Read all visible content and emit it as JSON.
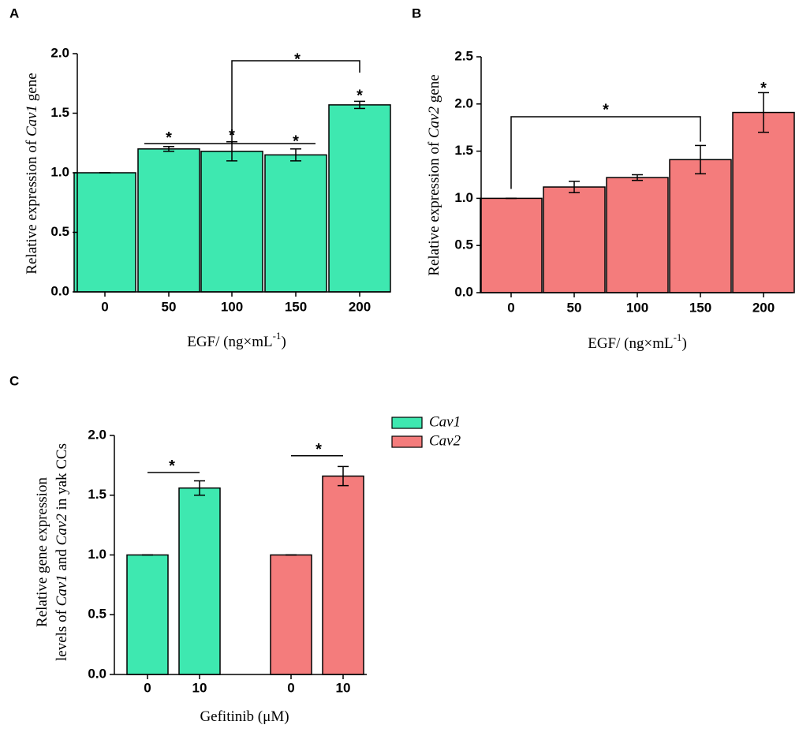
{
  "chart_data": [
    {
      "type": "bar",
      "panel": "A",
      "ylabel": [
        [
          {
            "text": "Relative expression of "
          },
          {
            "text": "Cav1",
            "style": "italic"
          },
          {
            "text": " gene"
          }
        ]
      ],
      "xlabel": [
        {
          "text": "EGF/ (ng×mL"
        },
        {
          "text": "-1",
          "style": "sup"
        },
        {
          "text": ")"
        }
      ],
      "categories": [
        "0",
        "50",
        "100",
        "150",
        "200"
      ],
      "values": [
        1.0,
        1.2,
        1.18,
        1.15,
        1.57
      ],
      "errors": [
        0,
        0.02,
        0.08,
        0.05,
        0.03
      ],
      "color": "#3ee8b0",
      "ylim": [
        0,
        2
      ],
      "yticks": [
        {
          "value": 0,
          "label": "0.0"
        },
        0.5,
        {
          "value": 1,
          "label": "1.0"
        },
        1.5,
        {
          "value": 2,
          "label": "2.0"
        }
      ],
      "annotations": [
        "*",
        "*",
        "*",
        "*",
        "*"
      ]
    },
    {
      "type": "bar",
      "panel": "B",
      "ylabel": [
        [
          {
            "text": "Relative expression of "
          },
          {
            "text": "Cav2",
            "style": "italic"
          },
          {
            "text": " gene"
          }
        ]
      ],
      "xlabel": [
        {
          "text": "EGF/ (ng×mL"
        },
        {
          "text": "-1",
          "style": "sup"
        },
        {
          "text": ")"
        }
      ],
      "categories": [
        "0",
        "50",
        "100",
        "150",
        "200"
      ],
      "values": [
        1.0,
        1.12,
        1.22,
        1.41,
        1.91
      ],
      "errors": [
        0,
        0.06,
        0.03,
        0.15,
        0.21
      ],
      "color": "#f47c7c",
      "ylim": [
        0,
        2.5
      ],
      "yticks": [
        {
          "value": 0,
          "label": "0.0"
        },
        0.5,
        {
          "value": 1,
          "label": "1.0"
        },
        1.5,
        {
          "value": 2,
          "label": "2.0"
        },
        2.5
      ],
      "annotations": [
        "*",
        "*"
      ]
    },
    {
      "type": "bar",
      "panel": "C",
      "ylabel": [
        [
          {
            "text": "Relative gene expression"
          }
        ],
        [
          {
            "text": "levels of "
          },
          {
            "text": "Cav1",
            "style": "italic"
          },
          {
            "text": " and "
          },
          {
            "text": "Cav2",
            "style": "italic"
          },
          {
            "text": " in yak CCs"
          }
        ]
      ],
      "xlabel": [
        {
          "text": "Gefitinib (μM)"
        }
      ],
      "categories": [
        "0",
        "10"
      ],
      "series": [
        {
          "name": "Cav1",
          "color": "#3ee8b0",
          "values": [
            1.0,
            1.56
          ],
          "errors": [
            0,
            0.06
          ]
        },
        {
          "name": "Cav2",
          "color": "#f47c7c",
          "values": [
            1.0,
            1.66
          ],
          "errors": [
            0,
            0.08
          ]
        }
      ],
      "ylim": [
        0,
        2
      ],
      "yticks": [
        {
          "value": 0,
          "label": "0.0"
        },
        0.5,
        {
          "value": 1,
          "label": "1.0"
        },
        1.5,
        {
          "value": 2,
          "label": "2.0"
        }
      ],
      "annotations": [
        "*",
        "*"
      ]
    }
  ]
}
